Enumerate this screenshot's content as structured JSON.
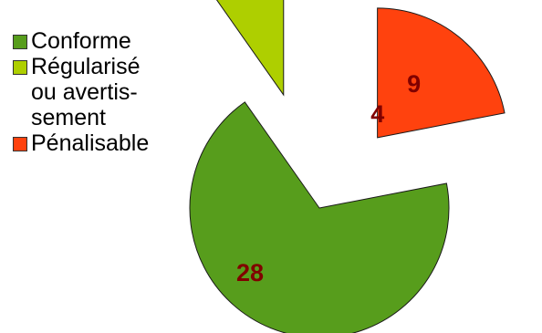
{
  "chart_data": {
    "type": "pie",
    "exploded": true,
    "legend_position": "left",
    "categories": [
      "Conforme",
      "Régularisé\nou avertis-\nsement",
      "Pénalisable"
    ],
    "values": [
      28,
      4,
      9
    ],
    "colors": [
      "#579d1c",
      "#aecf00",
      "#ff420e"
    ],
    "data_labels": [
      "28",
      "4",
      "9"
    ]
  }
}
